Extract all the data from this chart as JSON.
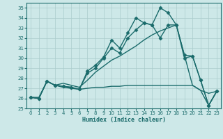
{
  "xlabel": "Humidex (Indice chaleur)",
  "background_color": "#cde8e8",
  "grid_color": "#aacccc",
  "line_color": "#1a6b6b",
  "xlim": [
    -0.5,
    23.5
  ],
  "ylim": [
    25,
    35.5
  ],
  "yticks": [
    25,
    26,
    27,
    28,
    29,
    30,
    31,
    32,
    33,
    34,
    35
  ],
  "xticks": [
    0,
    1,
    2,
    3,
    4,
    5,
    6,
    7,
    8,
    9,
    10,
    11,
    12,
    13,
    14,
    15,
    16,
    17,
    18,
    19,
    20,
    21,
    22,
    23
  ],
  "series": [
    {
      "x": [
        0,
        1,
        2,
        3,
        4,
        5,
        6,
        7,
        8,
        9,
        10,
        11,
        12,
        13,
        14,
        15,
        16,
        17,
        18,
        19,
        20,
        21,
        22,
        23
      ],
      "y": [
        26.1,
        26.0,
        27.7,
        27.3,
        27.2,
        27.1,
        26.9,
        28.7,
        29.3,
        30.1,
        31.8,
        31.0,
        32.5,
        34.0,
        33.5,
        33.3,
        35.0,
        34.5,
        33.3,
        30.3,
        30.2,
        27.8,
        25.3,
        26.7
      ],
      "marker": "D",
      "markersize": 2.5,
      "linewidth": 1.0
    },
    {
      "x": [
        0,
        1,
        2,
        3,
        4,
        5,
        6,
        7,
        8,
        9,
        10,
        11,
        12,
        13,
        14,
        15,
        16,
        17,
        18,
        19,
        20,
        21,
        22,
        23
      ],
      "y": [
        26.1,
        26.0,
        27.7,
        27.3,
        27.2,
        27.1,
        26.9,
        28.5,
        29.0,
        30.0,
        31.0,
        30.5,
        32.0,
        32.8,
        33.5,
        33.3,
        32.0,
        33.3,
        33.3,
        30.0,
        30.2,
        27.8,
        25.3,
        26.7
      ],
      "marker": "D",
      "markersize": 2.5,
      "linewidth": 1.0
    },
    {
      "x": [
        0,
        1,
        2,
        3,
        4,
        5,
        6,
        7,
        8,
        9,
        10,
        11,
        12,
        13,
        14,
        15,
        16,
        17,
        18,
        19,
        20,
        21,
        22,
        23
      ],
      "y": [
        26.1,
        26.1,
        27.7,
        27.3,
        27.5,
        27.3,
        27.1,
        27.8,
        28.6,
        29.2,
        29.8,
        30.2,
        30.7,
        31.2,
        31.8,
        32.3,
        32.7,
        33.0,
        33.3,
        30.3,
        27.3,
        26.8,
        26.5,
        26.7
      ],
      "marker": null,
      "linewidth": 1.0
    },
    {
      "x": [
        0,
        1,
        2,
        3,
        4,
        5,
        6,
        7,
        8,
        9,
        10,
        11,
        12,
        13,
        14,
        15,
        16,
        17,
        18,
        19,
        20,
        21,
        22,
        23
      ],
      "y": [
        26.1,
        26.0,
        27.7,
        27.3,
        27.1,
        27.0,
        26.9,
        27.0,
        27.1,
        27.1,
        27.2,
        27.2,
        27.3,
        27.3,
        27.3,
        27.3,
        27.3,
        27.3,
        27.3,
        27.3,
        27.3,
        26.8,
        25.3,
        26.7
      ],
      "marker": null,
      "linewidth": 1.0
    }
  ]
}
